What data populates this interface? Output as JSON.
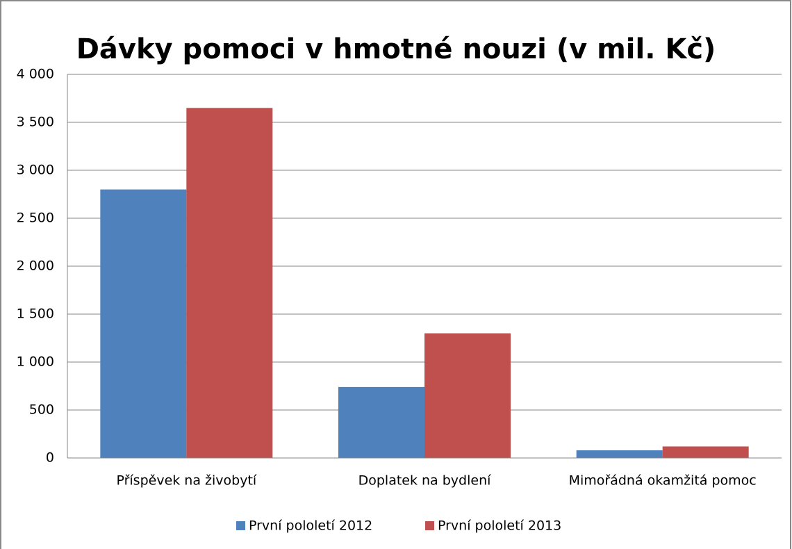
{
  "chart_data": {
    "type": "bar",
    "title": "Dávky pomoci v hmotné nouzi (v mil. Kč)",
    "categories": [
      "Příspěvek na živobytí",
      "Doplatek na bydlení",
      "Mimořádná okamžitá pomoc"
    ],
    "series": [
      {
        "name": "První pololetí 2012",
        "color": "#4f81bd",
        "values": [
          2800,
          740,
          80
        ]
      },
      {
        "name": "První pololetí 2013",
        "color": "#c0504d",
        "values": [
          3650,
          1300,
          120
        ]
      }
    ],
    "ylim": [
      0,
      4000
    ],
    "yticks": [
      0,
      500,
      {
        "value": 1000,
        "label": "1 000"
      },
      {
        "value": 1500,
        "label": "1 500"
      },
      {
        "value": 2000,
        "label": "2 000"
      },
      {
        "value": 2500,
        "label": "2 500"
      },
      {
        "value": 3000,
        "label": "3 000"
      },
      {
        "value": 3500,
        "label": "3 500"
      },
      {
        "value": 4000,
        "label": "4 000"
      }
    ],
    "grid": true,
    "legend": "bottom"
  }
}
